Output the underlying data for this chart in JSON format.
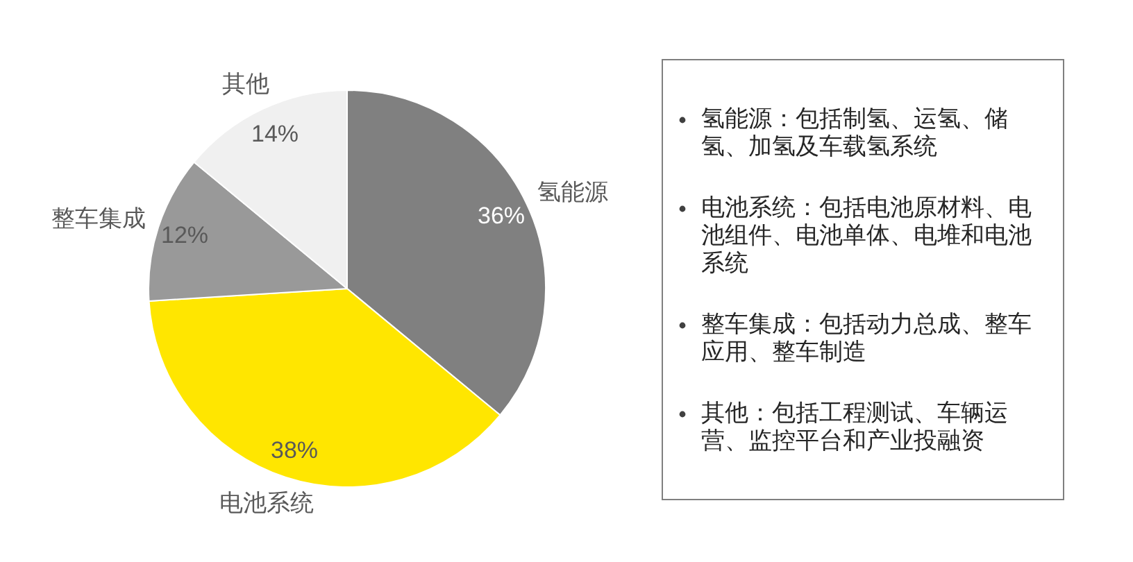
{
  "chart_data": {
    "type": "pie",
    "categories": [
      "氢能源",
      "电池系统",
      "整车集成",
      "其他"
    ],
    "values": [
      36,
      38,
      12,
      14
    ],
    "colors": [
      "#808080",
      "#ffe600",
      "#999999",
      "#f0f0f0"
    ],
    "value_labels": [
      "36%",
      "38%",
      "12%",
      "14%"
    ],
    "annotations": [
      "氢能源：包括制氢、运氢、储氢、加氢及车载氢系统",
      "电池系统：包括电池原材料、电池组件、电池单体、电堆和电池系统",
      "整车集成：包括动力总成、整车应用、整车制造",
      "其他：包括工程测试、车辆运营、监控平台和产业投融资"
    ]
  }
}
